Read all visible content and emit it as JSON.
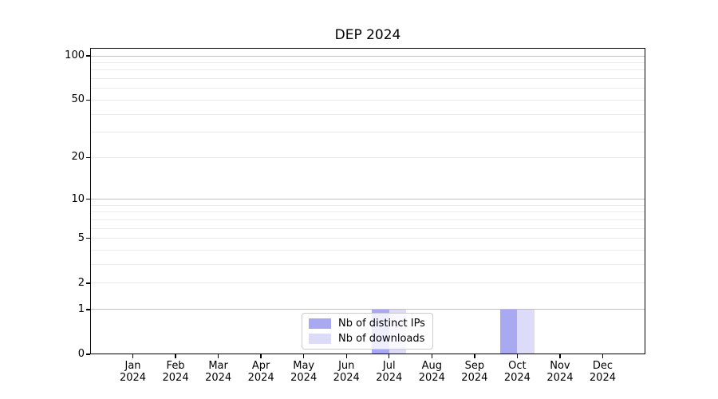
{
  "chart_data": {
    "type": "bar",
    "title": "DEP 2024",
    "categories": [
      "Jan",
      "Feb",
      "Mar",
      "Apr",
      "May",
      "Jun",
      "Jul",
      "Aug",
      "Sep",
      "Oct",
      "Nov",
      "Dec"
    ],
    "year_label": "2024",
    "series": [
      {
        "name": "Nb of distinct IPs",
        "color": "#a9a9f1",
        "values": [
          0,
          0,
          0,
          0,
          0,
          0,
          1,
          0,
          0,
          1,
          0,
          0
        ]
      },
      {
        "name": "Nb of downloads",
        "color": "#dcdcf8",
        "values": [
          0,
          0,
          0,
          0,
          0,
          0,
          1,
          0,
          0,
          1,
          0,
          0
        ]
      }
    ],
    "yscale": "log1p",
    "ylim": [
      0,
      110
    ],
    "y_tick_values": [
      100,
      50,
      20,
      10,
      5,
      2,
      1,
      0
    ],
    "y_tick_labels": [
      "100",
      "50",
      "20",
      "10",
      "5",
      "2",
      "1",
      "0"
    ],
    "y_major_gridlines": [
      1,
      10,
      100
    ],
    "y_minor_gridlines": [
      2,
      3,
      4,
      5,
      6,
      7,
      8,
      9,
      20,
      30,
      40,
      50,
      60,
      70,
      80,
      90
    ],
    "grid": "horizontal",
    "legend_position": "lower center inside",
    "xlabel": "",
    "ylabel": ""
  },
  "colors": {
    "background": "#ffffff",
    "spine": "#000000",
    "major_grid": "#c0c0c0",
    "minor_grid": "#ebebeb",
    "distinct_ips_bar": "#a9a9f1",
    "downloads_bar": "#dcdcf8"
  }
}
